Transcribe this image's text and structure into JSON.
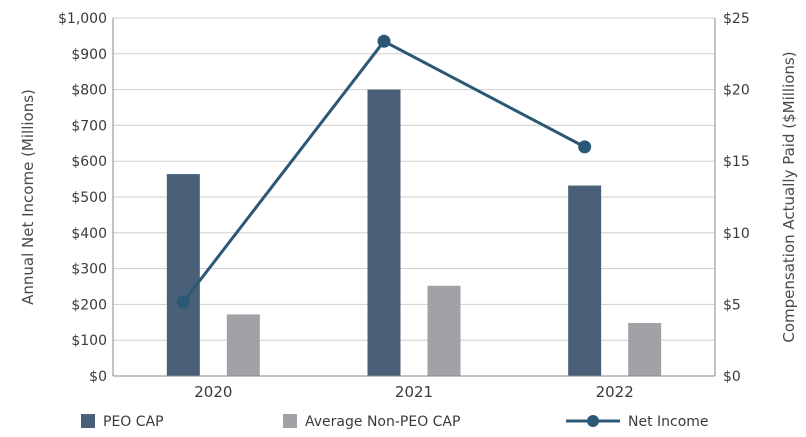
{
  "chart_data": {
    "type": "bar",
    "categories": [
      "2020",
      "2021",
      "2022"
    ],
    "series": [
      {
        "name": "PEO CAP",
        "axis": "right",
        "values": [
          14.1,
          20.0,
          13.3
        ],
        "color": "#4a6078"
      },
      {
        "name": "Average Non-PEO CAP",
        "axis": "right",
        "values": [
          4.3,
          6.3,
          3.7
        ],
        "color": "#a0a2a6"
      },
      {
        "name": "Net Income",
        "axis": "left",
        "type": "line",
        "values": [
          207,
          935,
          640
        ],
        "color": "#2b5876"
      }
    ],
    "left_axis": {
      "label": "Annual Net Income (Millions)",
      "range": [
        0,
        1000
      ],
      "ticks": [
        0,
        100,
        200,
        300,
        400,
        500,
        600,
        700,
        800,
        900,
        1000
      ],
      "tick_labels": [
        "$0",
        "$100",
        "$200",
        "$300",
        "$400",
        "$500",
        "$600",
        "$700",
        "$800",
        "$900",
        "$1,000"
      ]
    },
    "right_axis": {
      "label": "Compensation Actually Paid ($Millions)",
      "range": [
        0,
        25
      ],
      "ticks": [
        0,
        5,
        10,
        15,
        20,
        25
      ],
      "tick_labels": [
        "$0",
        "$5",
        "$10",
        "$15",
        "$20",
        "$25"
      ]
    },
    "grid": true,
    "legend_position": "bottom"
  }
}
